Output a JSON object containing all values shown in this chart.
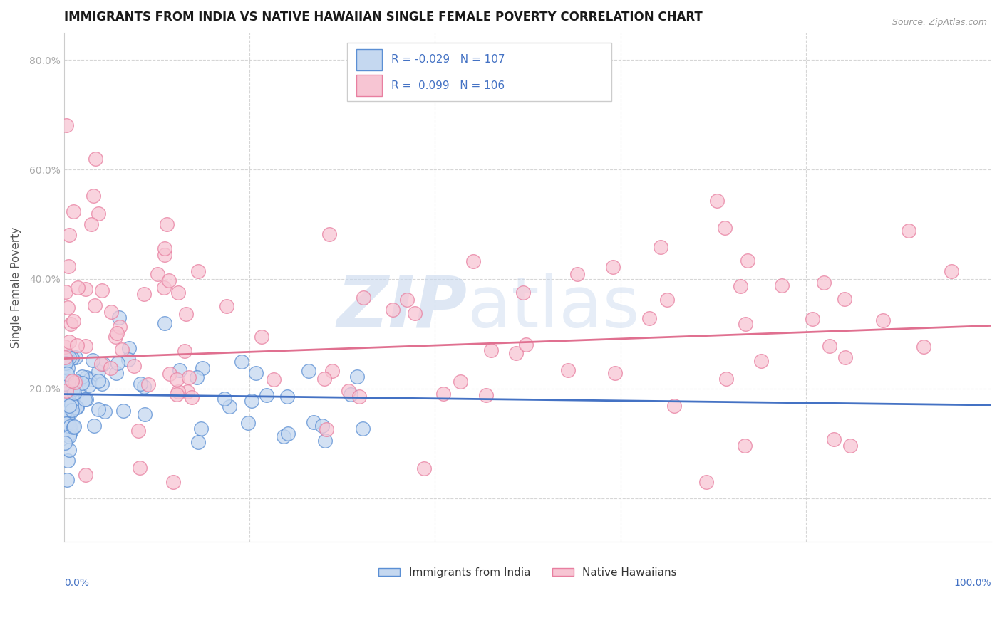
{
  "title": "IMMIGRANTS FROM INDIA VS NATIVE HAWAIIAN SINGLE FEMALE POVERTY CORRELATION CHART",
  "source": "Source: ZipAtlas.com",
  "ylabel": "Single Female Poverty",
  "legend_blue_label": "Immigrants from India",
  "legend_pink_label": "Native Hawaiians",
  "R_blue": -0.029,
  "N_blue": 107,
  "R_pink": 0.099,
  "N_pink": 106,
  "blue_fill": "#c5d8f0",
  "pink_fill": "#f7c5d3",
  "blue_edge": "#5b8fd4",
  "pink_edge": "#e87fa0",
  "blue_line": "#4472c4",
  "pink_line": "#e07090",
  "title_color": "#1a1a1a",
  "axis_label_color": "#4472c4",
  "watermark_color": "#d0dff0",
  "background_color": "#ffffff",
  "grid_color": "#cccccc",
  "ylim": [
    -0.08,
    0.85
  ],
  "xlim": [
    0.0,
    1.0
  ]
}
